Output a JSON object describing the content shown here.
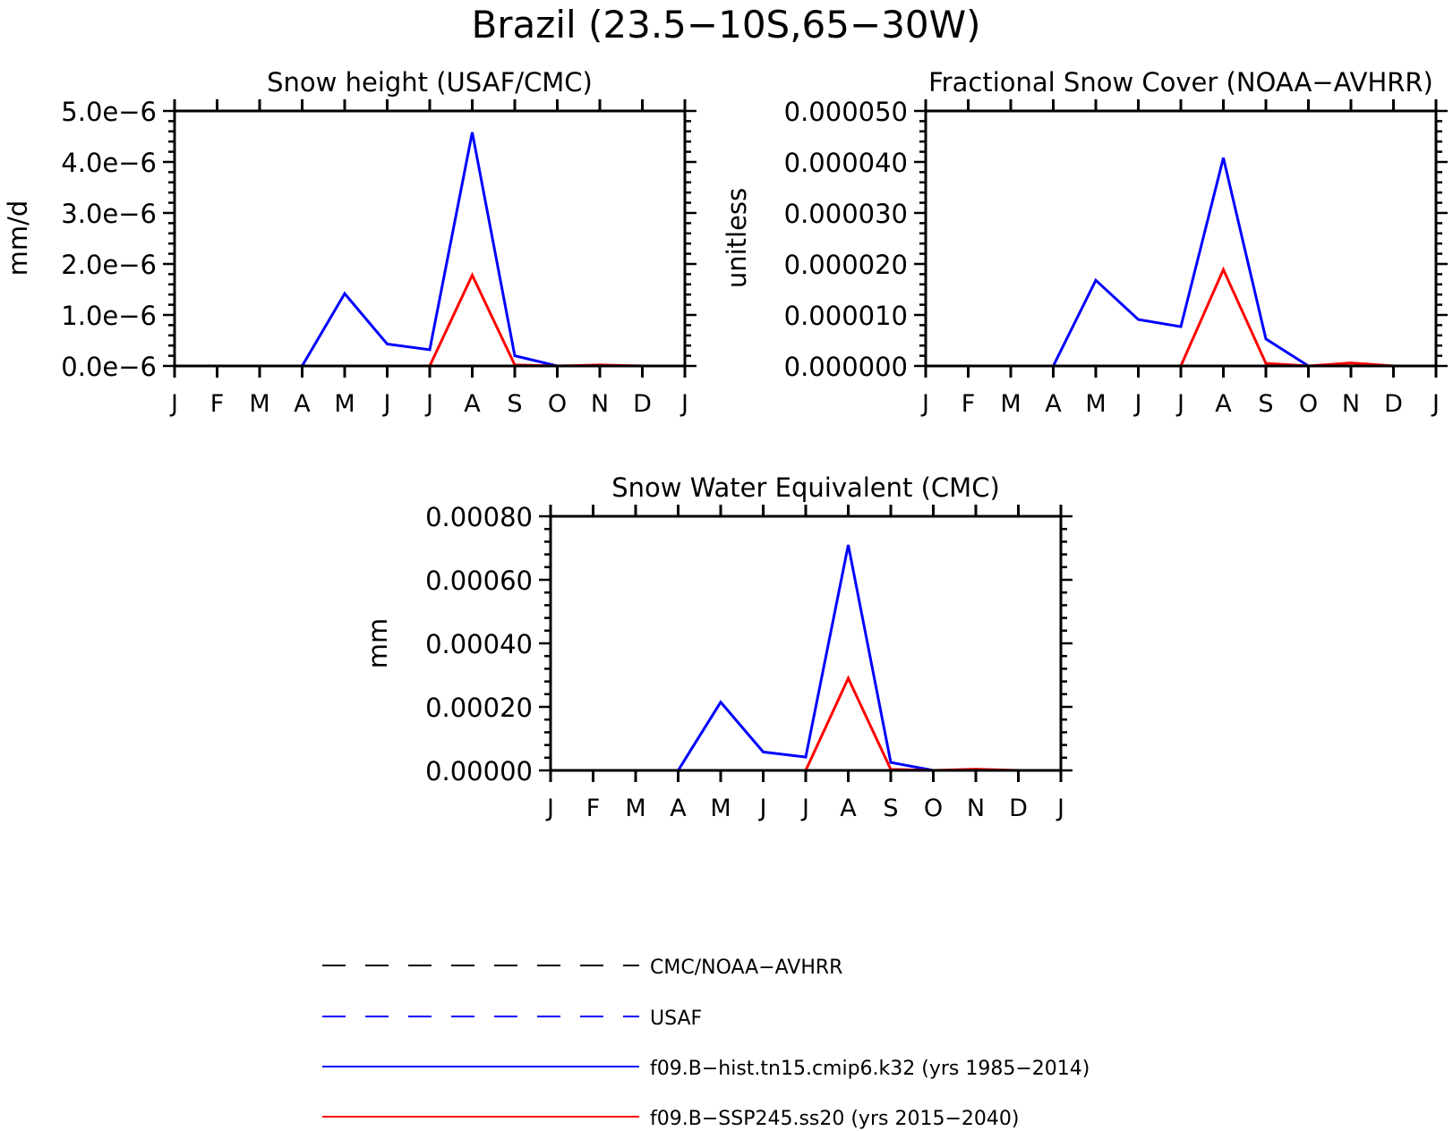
{
  "figure_title": "Brazil (23.5−10S,65−30W)",
  "colors": {
    "hist": "#0000ff",
    "ssp": "#ff0000",
    "obs": "#000000",
    "usaf": "#0000ff",
    "axis": "#000000"
  },
  "legend": {
    "items": [
      {
        "label": "CMC/NOAA−AVHRR",
        "color": "#000000",
        "style": "dashed"
      },
      {
        "label": "USAF",
        "color": "#0000ff",
        "style": "dashed"
      },
      {
        "label": "f09.B−hist.tn15.cmip6.k32 (yrs 1985−2014)",
        "color": "#0000ff",
        "style": "solid"
      },
      {
        "label": "f09.B−SSP245.ss20 (yrs 2015−2040)",
        "color": "#ff0000",
        "style": "solid"
      }
    ]
  },
  "chart_data": [
    {
      "type": "line",
      "title": "Snow height (USAF/CMC)",
      "xlabel": "",
      "ylabel": "mm/d",
      "categories": [
        "J",
        "F",
        "M",
        "A",
        "M",
        "J",
        "J",
        "A",
        "S",
        "O",
        "N",
        "D",
        "J"
      ],
      "ylim": [
        0,
        5e-06
      ],
      "yticks": [
        0,
        1e-06,
        2e-06,
        3e-06,
        4e-06,
        5e-06
      ],
      "ytick_labels": [
        "0.0e−6",
        "1.0e−6",
        "2.0e−6",
        "3.0e−6",
        "4.0e−6",
        "5.0e−6"
      ],
      "grid": false,
      "series": [
        {
          "name": "f09.B−hist.tn15.cmip6.k32 (yrs 1985−2014)",
          "color": "#0000ff",
          "values": [
            0,
            0,
            0,
            0,
            1.42e-06,
            4.3e-07,
            3.2e-07,
            4.58e-06,
            2e-07,
            0,
            0,
            0,
            0
          ]
        },
        {
          "name": "f09.B−SSP245.ss20 (yrs 2015−2040)",
          "color": "#ff0000",
          "values": [
            0,
            0,
            0,
            0,
            0,
            0,
            0,
            1.78e-06,
            2e-08,
            0,
            2e-08,
            0,
            0
          ]
        }
      ]
    },
    {
      "type": "line",
      "title": "Fractional Snow Cover (NOAA−AVHRR)",
      "xlabel": "",
      "ylabel": "unitless",
      "categories": [
        "J",
        "F",
        "M",
        "A",
        "M",
        "J",
        "J",
        "A",
        "S",
        "O",
        "N",
        "D",
        "J"
      ],
      "ylim": [
        0,
        5e-05
      ],
      "yticks": [
        0,
        1e-05,
        2e-05,
        3e-05,
        4e-05,
        5e-05
      ],
      "ytick_labels": [
        "0.000000",
        "0.000010",
        "0.000020",
        "0.000030",
        "0.000040",
        "0.000050"
      ],
      "grid": false,
      "series": [
        {
          "name": "f09.B−hist.tn15.cmip6.k32 (yrs 1985−2014)",
          "color": "#0000ff",
          "values": [
            0,
            0,
            0,
            0,
            1.68e-05,
            9.1e-06,
            7.7e-06,
            4.08e-05,
            5.3e-06,
            0,
            0,
            0,
            0
          ]
        },
        {
          "name": "f09.B−SSP245.ss20 (yrs 2015−2040)",
          "color": "#ff0000",
          "values": [
            0,
            0,
            0,
            0,
            0,
            0,
            0,
            1.89e-05,
            5e-07,
            0,
            6e-07,
            0,
            0
          ]
        }
      ]
    },
    {
      "type": "line",
      "title": "Snow Water Equivalent (CMC)",
      "xlabel": "",
      "ylabel": "mm",
      "categories": [
        "J",
        "F",
        "M",
        "A",
        "M",
        "J",
        "J",
        "A",
        "S",
        "O",
        "N",
        "D",
        "J"
      ],
      "ylim": [
        0,
        0.0008
      ],
      "yticks": [
        0,
        0.0002,
        0.0004,
        0.0006,
        0.0008
      ],
      "ytick_labels": [
        "0.00000",
        "0.00020",
        "0.00040",
        "0.00060",
        "0.00080"
      ],
      "grid": false,
      "series": [
        {
          "name": "f09.B−hist.tn15.cmip6.k32 (yrs 1985−2014)",
          "color": "#0000ff",
          "values": [
            0,
            0,
            0,
            0,
            0.000215,
            5.8e-05,
            4.2e-05,
            0.00071,
            2.5e-05,
            0,
            0,
            0,
            0
          ]
        },
        {
          "name": "f09.B−SSP245.ss20 (yrs 2015−2040)",
          "color": "#ff0000",
          "values": [
            0,
            0,
            0,
            0,
            0,
            0,
            0,
            0.00029,
            3e-06,
            0,
            4e-06,
            0,
            0
          ]
        }
      ]
    }
  ]
}
